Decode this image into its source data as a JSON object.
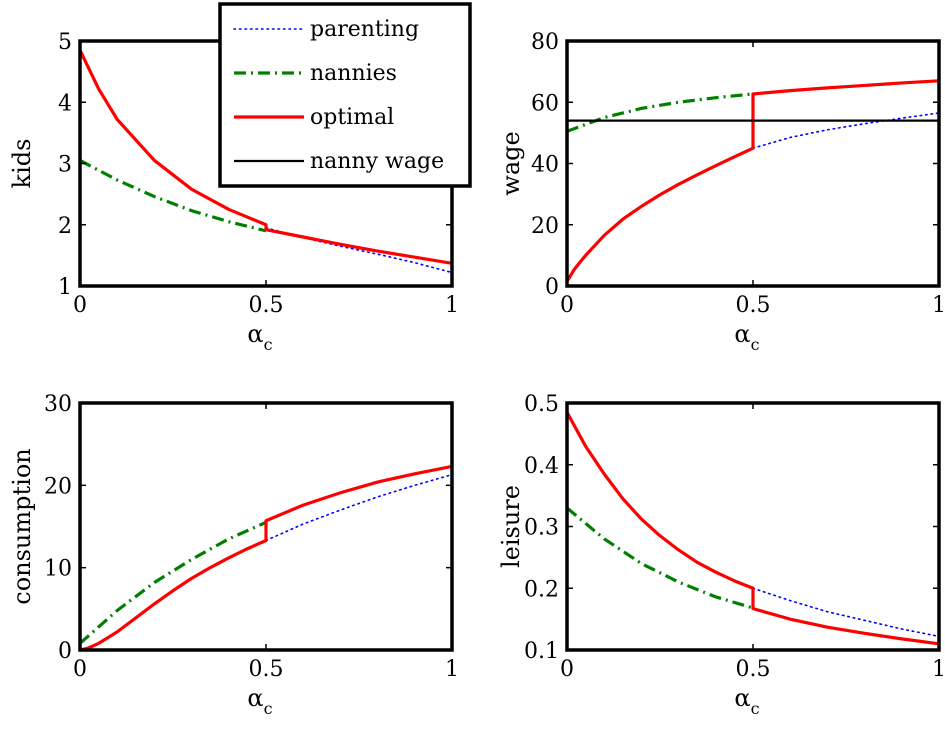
{
  "chart_data": [
    {
      "type": "line",
      "ylabel": "kids",
      "xlabel": "α",
      "xlabel_sub": "c",
      "xlim": [
        0,
        1
      ],
      "ylim": [
        1,
        5
      ],
      "xticks": [
        0,
        0.5,
        1
      ],
      "xtick_labels": [
        "0",
        "0.5",
        "1"
      ],
      "yticks": [
        1,
        2,
        3,
        4,
        5
      ],
      "ytick_labels": [
        "1",
        "2",
        "3",
        "4",
        "5"
      ],
      "grid": false,
      "series": [
        {
          "name": "parenting",
          "color": "#0000ff",
          "style": "dotted",
          "x": [
            0.5,
            0.6,
            0.7,
            0.8,
            0.9,
            1.0
          ],
          "y": [
            1.95,
            1.79,
            1.65,
            1.52,
            1.38,
            1.22
          ]
        },
        {
          "name": "nannies",
          "color": "#008000",
          "style": "dashdot",
          "x": [
            0,
            0.1,
            0.2,
            0.3,
            0.4,
            0.5
          ],
          "y": [
            3.05,
            2.73,
            2.46,
            2.23,
            2.05,
            1.9
          ]
        },
        {
          "name": "optimal",
          "color": "#ff0000",
          "style": "solid",
          "x": [
            0,
            0.05,
            0.1,
            0.2,
            0.3,
            0.4,
            0.5,
            0.5,
            0.6,
            0.7,
            0.8,
            0.9,
            1.0
          ],
          "y": [
            4.85,
            4.22,
            3.72,
            3.05,
            2.58,
            2.25,
            2.0,
            1.92,
            1.8,
            1.68,
            1.57,
            1.47,
            1.37
          ]
        }
      ]
    },
    {
      "type": "line",
      "ylabel": "wage",
      "xlabel": "α",
      "xlabel_sub": "c",
      "xlim": [
        0,
        1
      ],
      "ylim": [
        0,
        80
      ],
      "xticks": [
        0,
        0.5,
        1
      ],
      "xtick_labels": [
        "0",
        "0.5",
        "1"
      ],
      "yticks": [
        0,
        20,
        40,
        60,
        80
      ],
      "ytick_labels": [
        "0",
        "20",
        "40",
        "60",
        "80"
      ],
      "grid": false,
      "series": [
        {
          "name": "parenting",
          "color": "#0000ff",
          "style": "dotted",
          "x": [
            0.5,
            0.6,
            0.7,
            0.8,
            0.9,
            1.0
          ],
          "y": [
            45.0,
            48.5,
            51.0,
            53.0,
            54.8,
            56.5
          ]
        },
        {
          "name": "nannies",
          "color": "#008000",
          "style": "dashdot",
          "x": [
            0,
            0.1,
            0.2,
            0.3,
            0.4,
            0.5
          ],
          "y": [
            50.5,
            55.0,
            58.0,
            60.0,
            61.5,
            62.7
          ]
        },
        {
          "name": "optimal",
          "color": "#ff0000",
          "style": "solid",
          "x": [
            0,
            0.02,
            0.05,
            0.1,
            0.15,
            0.2,
            0.25,
            0.3,
            0.35,
            0.4,
            0.45,
            0.5,
            0.5,
            0.6,
            0.7,
            0.8,
            0.9,
            1.0
          ],
          "y": [
            1.5,
            5.5,
            10.0,
            16.5,
            21.8,
            26.0,
            29.8,
            33.2,
            36.3,
            39.3,
            42.2,
            45.0,
            62.7,
            63.8,
            64.7,
            65.5,
            66.3,
            67.0
          ]
        },
        {
          "name": "nanny wage",
          "color": "#000000",
          "style": "solid",
          "x": [
            0,
            1
          ],
          "y": [
            54.0,
            54.0
          ]
        }
      ]
    },
    {
      "type": "line",
      "ylabel": "consumption",
      "xlabel": "α",
      "xlabel_sub": "c",
      "xlim": [
        0,
        1
      ],
      "ylim": [
        0,
        30
      ],
      "xticks": [
        0,
        0.5,
        1
      ],
      "xtick_labels": [
        "0",
        "0.5",
        "1"
      ],
      "yticks": [
        0,
        10,
        20,
        30
      ],
      "ytick_labels": [
        "0",
        "10",
        "20",
        "30"
      ],
      "grid": false,
      "series": [
        {
          "name": "parenting",
          "color": "#0000ff",
          "style": "dotted",
          "x": [
            0.5,
            0.6,
            0.7,
            0.8,
            0.9,
            1.0
          ],
          "y": [
            13.3,
            15.3,
            17.0,
            18.6,
            20.0,
            21.3
          ]
        },
        {
          "name": "nannies",
          "color": "#008000",
          "style": "dashdot",
          "x": [
            0,
            0.05,
            0.1,
            0.2,
            0.3,
            0.4,
            0.5
          ],
          "y": [
            0.8,
            2.8,
            4.8,
            8.2,
            11.0,
            13.5,
            15.5
          ]
        },
        {
          "name": "optimal",
          "color": "#ff0000",
          "style": "solid",
          "x": [
            0,
            0.02,
            0.05,
            0.1,
            0.15,
            0.2,
            0.25,
            0.3,
            0.35,
            0.4,
            0.45,
            0.5,
            0.5,
            0.6,
            0.7,
            0.8,
            0.9,
            1.0
          ],
          "y": [
            0,
            0.2,
            0.8,
            2.2,
            3.9,
            5.6,
            7.2,
            8.7,
            10.0,
            11.2,
            12.3,
            13.3,
            15.7,
            17.6,
            19.1,
            20.4,
            21.4,
            22.3
          ]
        }
      ]
    },
    {
      "type": "line",
      "ylabel": "leisure",
      "xlabel": "α",
      "xlabel_sub": "c",
      "xlim": [
        0,
        1
      ],
      "ylim": [
        0.1,
        0.5
      ],
      "xticks": [
        0,
        0.5,
        1
      ],
      "xtick_labels": [
        "0",
        "0.5",
        "1"
      ],
      "yticks": [
        0.1,
        0.2,
        0.3,
        0.4,
        0.5
      ],
      "ytick_labels": [
        "0.1",
        "0.2",
        "0.3",
        "0.4",
        "0.5"
      ],
      "grid": false,
      "series": [
        {
          "name": "parenting",
          "color": "#0000ff",
          "style": "dotted",
          "x": [
            0.5,
            0.6,
            0.7,
            0.8,
            0.9,
            1.0
          ],
          "y": [
            0.2,
            0.18,
            0.162,
            0.148,
            0.134,
            0.122
          ]
        },
        {
          "name": "nannies",
          "color": "#008000",
          "style": "dashdot",
          "x": [
            0,
            0.1,
            0.2,
            0.3,
            0.4,
            0.5
          ],
          "y": [
            0.33,
            0.28,
            0.24,
            0.21,
            0.186,
            0.168
          ]
        },
        {
          "name": "optimal",
          "color": "#ff0000",
          "style": "solid",
          "x": [
            0,
            0.05,
            0.1,
            0.15,
            0.2,
            0.25,
            0.3,
            0.35,
            0.4,
            0.45,
            0.5,
            0.5,
            0.6,
            0.7,
            0.8,
            0.9,
            1.0
          ],
          "y": [
            0.485,
            0.43,
            0.385,
            0.345,
            0.312,
            0.285,
            0.262,
            0.242,
            0.226,
            0.212,
            0.2,
            0.167,
            0.15,
            0.137,
            0.127,
            0.118,
            0.11
          ]
        }
      ]
    }
  ],
  "legend": {
    "placement": "top-center",
    "entries": [
      {
        "label": "parenting",
        "color": "#0000ff",
        "style": "dotted"
      },
      {
        "label": "nannies",
        "color": "#008000",
        "style": "dashdot"
      },
      {
        "label": "optimal",
        "color": "#ff0000",
        "style": "solid"
      },
      {
        "label": "nanny wage",
        "color": "#000000",
        "style": "solid"
      }
    ]
  }
}
